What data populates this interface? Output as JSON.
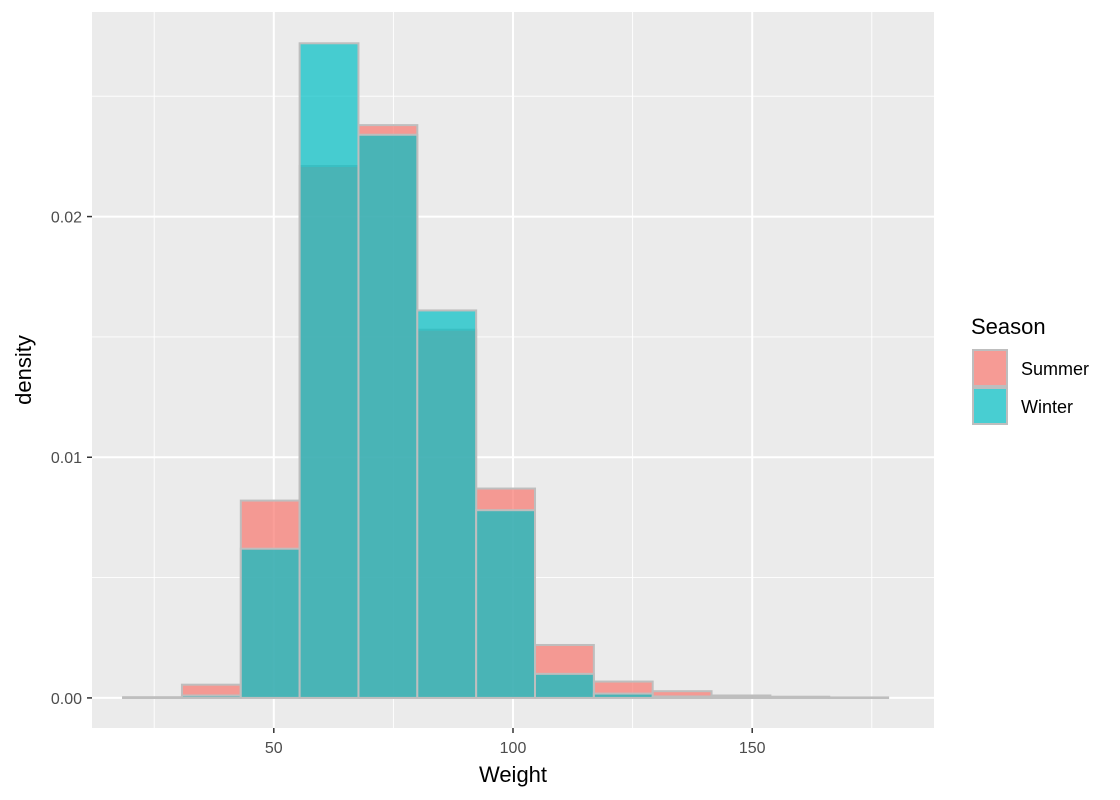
{
  "chart_data": {
    "type": "histogram",
    "title": "",
    "xlabel": "Weight",
    "ylabel": "density",
    "xlim": [
      12,
      188
    ],
    "ylim": [
      -0.00125,
      0.0285
    ],
    "x_ticks": [
      50,
      100,
      150
    ],
    "y_ticks": [
      0.0,
      0.01,
      0.02
    ],
    "y_tick_labels": [
      "0.00",
      "0.01",
      "0.02"
    ],
    "grid": true,
    "legend": {
      "title": "Season",
      "placement": "right"
    },
    "bin_edges": [
      18.5,
      30.8,
      43.1,
      55.4,
      67.7,
      80.0,
      92.3,
      104.6,
      116.9,
      129.2,
      141.5,
      153.8,
      166.1,
      178.4
    ],
    "series": [
      {
        "name": "Summer",
        "color": "#F8766D",
        "values": [
          3e-05,
          0.00055,
          0.0082,
          0.0221,
          0.0238,
          0.0153,
          0.0087,
          0.0022,
          0.00068,
          0.00028,
          0.0001,
          5e-05,
          2e-05
        ]
      },
      {
        "name": "Winter",
        "color": "#00BFC4",
        "values": [
          1e-05,
          0.0001,
          0.0062,
          0.0272,
          0.0234,
          0.0161,
          0.0078,
          0.001,
          0.00018,
          6e-05,
          2e-05,
          1e-05,
          0.0
        ]
      }
    ]
  }
}
